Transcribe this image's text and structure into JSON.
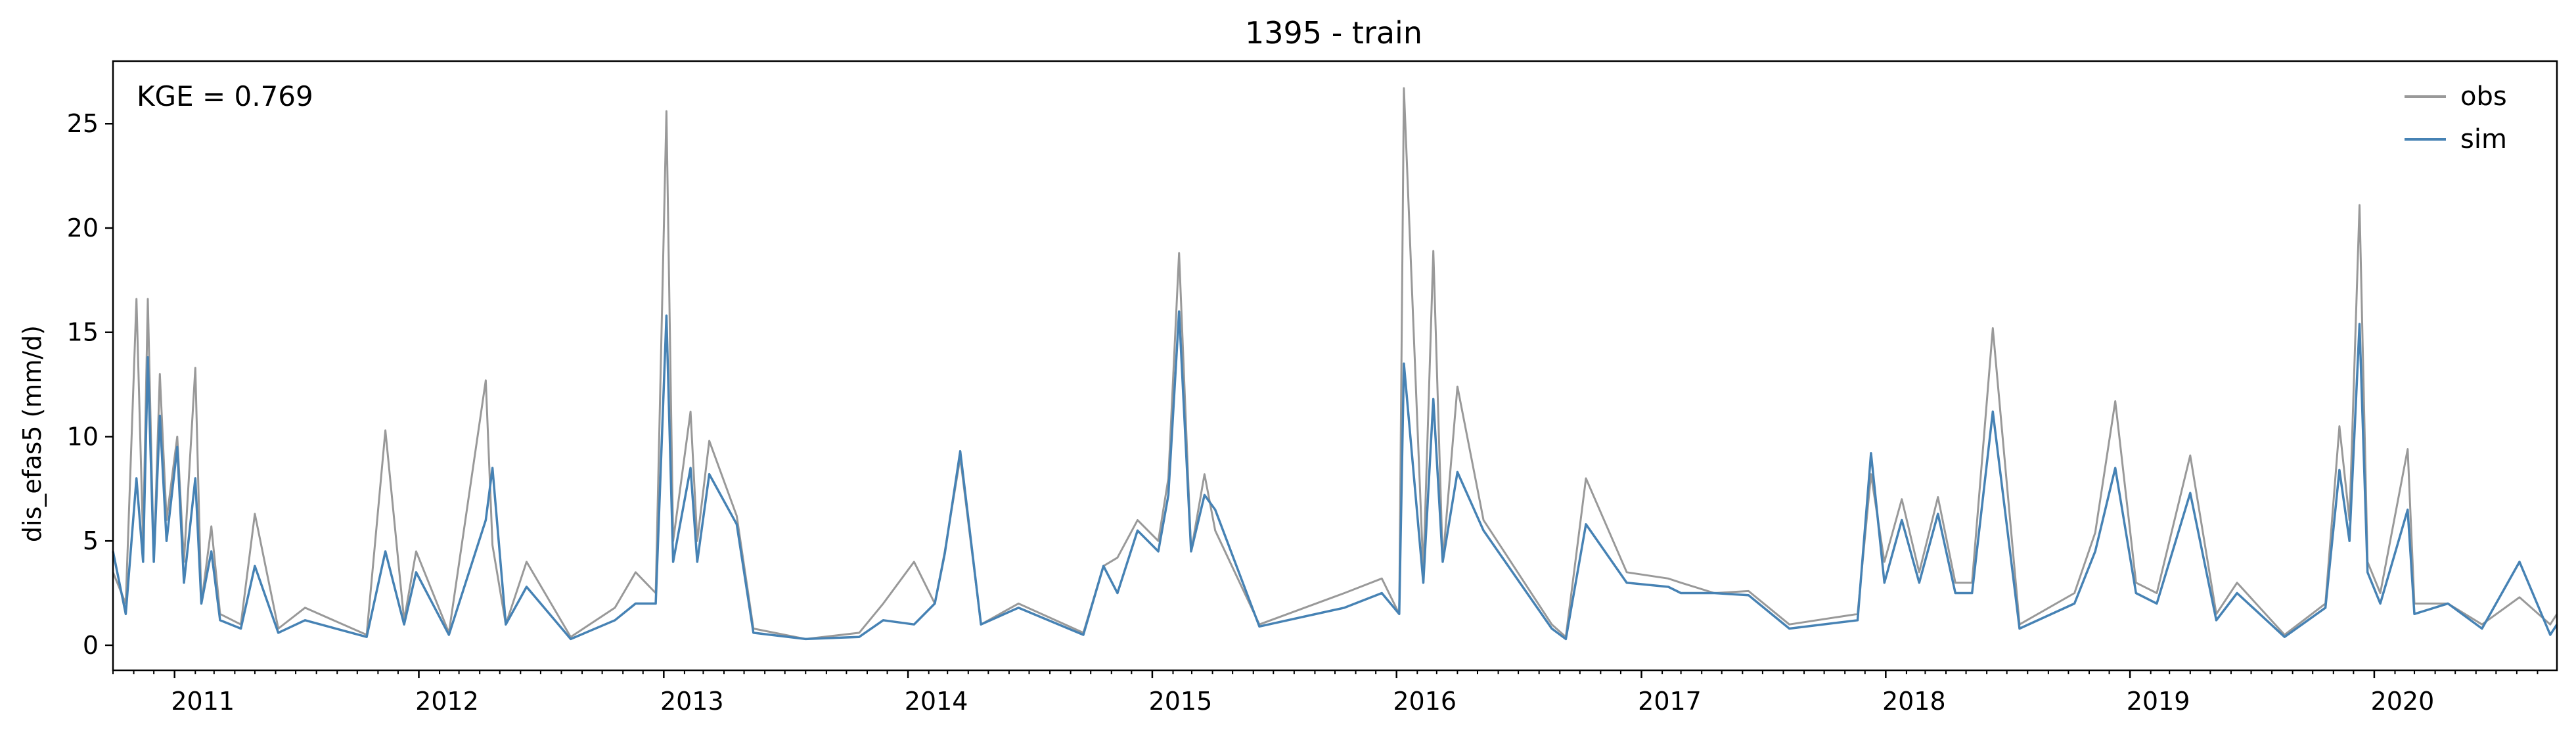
{
  "chart_data": {
    "type": "line",
    "title": "1395 - train",
    "xlabel": "",
    "ylabel": "dis_efas5 (mm/d)",
    "annotation": "KGE = 0.769",
    "xlim": [
      "2010-10-01",
      "2020-09-30"
    ],
    "ylim": [
      -1.2,
      28.0
    ],
    "yticks": [
      0,
      5,
      10,
      15,
      20,
      25
    ],
    "ytick_labels": [
      "0",
      "5",
      "10",
      "15",
      "20",
      "25"
    ],
    "xtick_labels": [
      "2011",
      "2012",
      "2013",
      "2014",
      "2015",
      "2016",
      "2017",
      "2018",
      "2019",
      "2020"
    ],
    "xtick_dates": [
      "2011-01-01",
      "2012-01-01",
      "2013-01-01",
      "2014-01-01",
      "2015-01-01",
      "2016-01-01",
      "2017-01-01",
      "2018-01-01",
      "2019-01-01",
      "2020-01-01"
    ],
    "grid": false,
    "legend_position": "top-right",
    "series": [
      {
        "name": "obs",
        "color": "#999999",
        "x": [
          "2010-10-01",
          "2010-10-20",
          "2010-11-05",
          "2010-11-15",
          "2010-11-22",
          "2010-12-01",
          "2010-12-10",
          "2010-12-20",
          "2011-01-05",
          "2011-01-15",
          "2011-02-01",
          "2011-02-10",
          "2011-02-25",
          "2011-03-10",
          "2011-04-10",
          "2011-05-01",
          "2011-06-05",
          "2011-07-15",
          "2011-10-15",
          "2011-11-12",
          "2011-12-10",
          "2011-12-28",
          "2012-02-15",
          "2012-04-10",
          "2012-04-20",
          "2012-05-10",
          "2012-06-10",
          "2012-08-15",
          "2012-10-20",
          "2012-11-20",
          "2012-12-20",
          "2013-01-05",
          "2013-01-15",
          "2013-02-10",
          "2013-02-20",
          "2013-03-10",
          "2013-04-20",
          "2013-05-15",
          "2013-08-01",
          "2013-10-20",
          "2013-11-25",
          "2014-01-10",
          "2014-02-10",
          "2014-02-25",
          "2014-03-20",
          "2014-04-20",
          "2014-06-15",
          "2014-09-20",
          "2014-10-20",
          "2014-11-10",
          "2014-12-10",
          "2015-01-10",
          "2015-01-25",
          "2015-02-10",
          "2015-02-28",
          "2015-03-20",
          "2015-04-05",
          "2015-06-10",
          "2015-10-15",
          "2015-12-10",
          "2016-01-05",
          "2016-01-12",
          "2016-02-10",
          "2016-02-25",
          "2016-03-10",
          "2016-04-01",
          "2016-05-10",
          "2016-08-20",
          "2016-09-10",
          "2016-10-10",
          "2016-12-10",
          "2017-02-10",
          "2017-03-01",
          "2017-04-20",
          "2017-06-10",
          "2017-08-10",
          "2017-11-20",
          "2017-12-10",
          "2017-12-30",
          "2018-01-25",
          "2018-02-20",
          "2018-03-20",
          "2018-04-15",
          "2018-05-10",
          "2018-06-10",
          "2018-07-20",
          "2018-10-10",
          "2018-11-10",
          "2018-12-10",
          "2019-01-10",
          "2019-02-10",
          "2019-04-01",
          "2019-05-10",
          "2019-06-10",
          "2019-08-20",
          "2019-10-20",
          "2019-11-10",
          "2019-11-25",
          "2019-12-10",
          "2019-12-22",
          "2020-01-10",
          "2020-02-20",
          "2020-03-01",
          "2020-04-20",
          "2020-06-10",
          "2020-08-05",
          "2020-09-20",
          "2020-09-30"
        ],
        "y": [
          3.5,
          2.0,
          16.6,
          5.0,
          16.6,
          4.0,
          13.0,
          6.0,
          10.0,
          4.0,
          13.3,
          2.0,
          5.7,
          1.5,
          1.0,
          6.3,
          0.8,
          1.8,
          0.5,
          10.3,
          1.2,
          4.5,
          0.6,
          12.7,
          4.8,
          1.0,
          4.0,
          0.4,
          1.8,
          3.5,
          2.5,
          25.6,
          5.0,
          11.2,
          5.0,
          9.8,
          6.2,
          0.8,
          0.3,
          0.6,
          2.0,
          4.0,
          2.0,
          4.5,
          9.0,
          1.0,
          2.0,
          0.6,
          3.8,
          4.2,
          6.0,
          5.0,
          8.0,
          18.8,
          4.5,
          8.2,
          5.5,
          1.0,
          2.5,
          3.2,
          1.5,
          26.7,
          3.5,
          18.9,
          4.0,
          12.4,
          6.0,
          1.0,
          0.4,
          8.0,
          3.5,
          3.2,
          3.0,
          2.5,
          2.6,
          1.0,
          1.5,
          8.2,
          4.0,
          7.0,
          3.5,
          7.1,
          3.0,
          3.0,
          15.2,
          1.0,
          2.5,
          5.4,
          11.7,
          3.0,
          2.5,
          9.1,
          1.5,
          3.0,
          0.5,
          2.0,
          10.5,
          6.0,
          21.1,
          4.0,
          2.5,
          9.4,
          2.0,
          2.0,
          1.0,
          2.3,
          1.0,
          1.5
        ]
      },
      {
        "name": "sim",
        "color": "#4682b4",
        "x": [
          "2010-10-01",
          "2010-10-20",
          "2010-11-05",
          "2010-11-15",
          "2010-11-22",
          "2010-12-01",
          "2010-12-10",
          "2010-12-20",
          "2011-01-05",
          "2011-01-15",
          "2011-02-01",
          "2011-02-10",
          "2011-02-25",
          "2011-03-10",
          "2011-04-10",
          "2011-05-01",
          "2011-06-05",
          "2011-07-15",
          "2011-10-15",
          "2011-11-12",
          "2011-12-10",
          "2011-12-28",
          "2012-02-15",
          "2012-04-10",
          "2012-04-20",
          "2012-05-10",
          "2012-06-10",
          "2012-08-15",
          "2012-10-20",
          "2012-11-20",
          "2012-12-20",
          "2013-01-05",
          "2013-01-15",
          "2013-02-10",
          "2013-02-20",
          "2013-03-10",
          "2013-04-20",
          "2013-05-15",
          "2013-08-01",
          "2013-10-20",
          "2013-11-25",
          "2014-01-10",
          "2014-02-10",
          "2014-02-25",
          "2014-03-20",
          "2014-04-20",
          "2014-06-15",
          "2014-09-20",
          "2014-10-20",
          "2014-11-10",
          "2014-12-10",
          "2015-01-10",
          "2015-01-25",
          "2015-02-10",
          "2015-02-28",
          "2015-03-20",
          "2015-04-05",
          "2015-06-10",
          "2015-10-15",
          "2015-12-10",
          "2016-01-05",
          "2016-01-12",
          "2016-02-10",
          "2016-02-25",
          "2016-03-10",
          "2016-04-01",
          "2016-05-10",
          "2016-08-20",
          "2016-09-10",
          "2016-10-10",
          "2016-12-10",
          "2017-02-10",
          "2017-03-01",
          "2017-04-20",
          "2017-06-10",
          "2017-08-10",
          "2017-11-20",
          "2017-12-10",
          "2017-12-30",
          "2018-01-25",
          "2018-02-20",
          "2018-03-20",
          "2018-04-15",
          "2018-05-10",
          "2018-06-10",
          "2018-07-20",
          "2018-10-10",
          "2018-11-10",
          "2018-12-10",
          "2019-01-10",
          "2019-02-10",
          "2019-04-01",
          "2019-05-10",
          "2019-06-10",
          "2019-08-20",
          "2019-10-20",
          "2019-11-10",
          "2019-11-25",
          "2019-12-10",
          "2019-12-22",
          "2020-01-10",
          "2020-02-20",
          "2020-03-01",
          "2020-04-20",
          "2020-06-10",
          "2020-08-05",
          "2020-09-20",
          "2020-09-30"
        ],
        "y": [
          4.5,
          1.5,
          8.0,
          4.0,
          13.8,
          4.0,
          11.0,
          5.0,
          9.5,
          3.0,
          8.0,
          2.0,
          4.5,
          1.2,
          0.8,
          3.8,
          0.6,
          1.2,
          0.4,
          4.5,
          1.0,
          3.5,
          0.5,
          6.0,
          8.5,
          1.0,
          2.8,
          0.3,
          1.2,
          2.0,
          2.0,
          15.8,
          4.0,
          8.5,
          4.0,
          8.2,
          5.8,
          0.6,
          0.3,
          0.4,
          1.2,
          1.0,
          2.0,
          4.4,
          9.3,
          1.0,
          1.8,
          0.5,
          3.8,
          2.5,
          5.5,
          4.5,
          7.2,
          16.0,
          4.5,
          7.2,
          6.5,
          0.9,
          1.8,
          2.5,
          1.5,
          13.5,
          3.0,
          11.8,
          4.0,
          8.3,
          5.5,
          0.8,
          0.3,
          5.8,
          3.0,
          2.8,
          2.5,
          2.5,
          2.4,
          0.8,
          1.2,
          9.2,
          3.0,
          6.0,
          3.0,
          6.3,
          2.5,
          2.5,
          11.2,
          0.8,
          2.0,
          4.5,
          8.5,
          2.5,
          2.0,
          7.3,
          1.2,
          2.5,
          0.4,
          1.8,
          8.4,
          5.0,
          15.4,
          3.5,
          2.0,
          6.5,
          1.5,
          2.0,
          0.8,
          4.0,
          0.5,
          1.0
        ]
      }
    ]
  }
}
